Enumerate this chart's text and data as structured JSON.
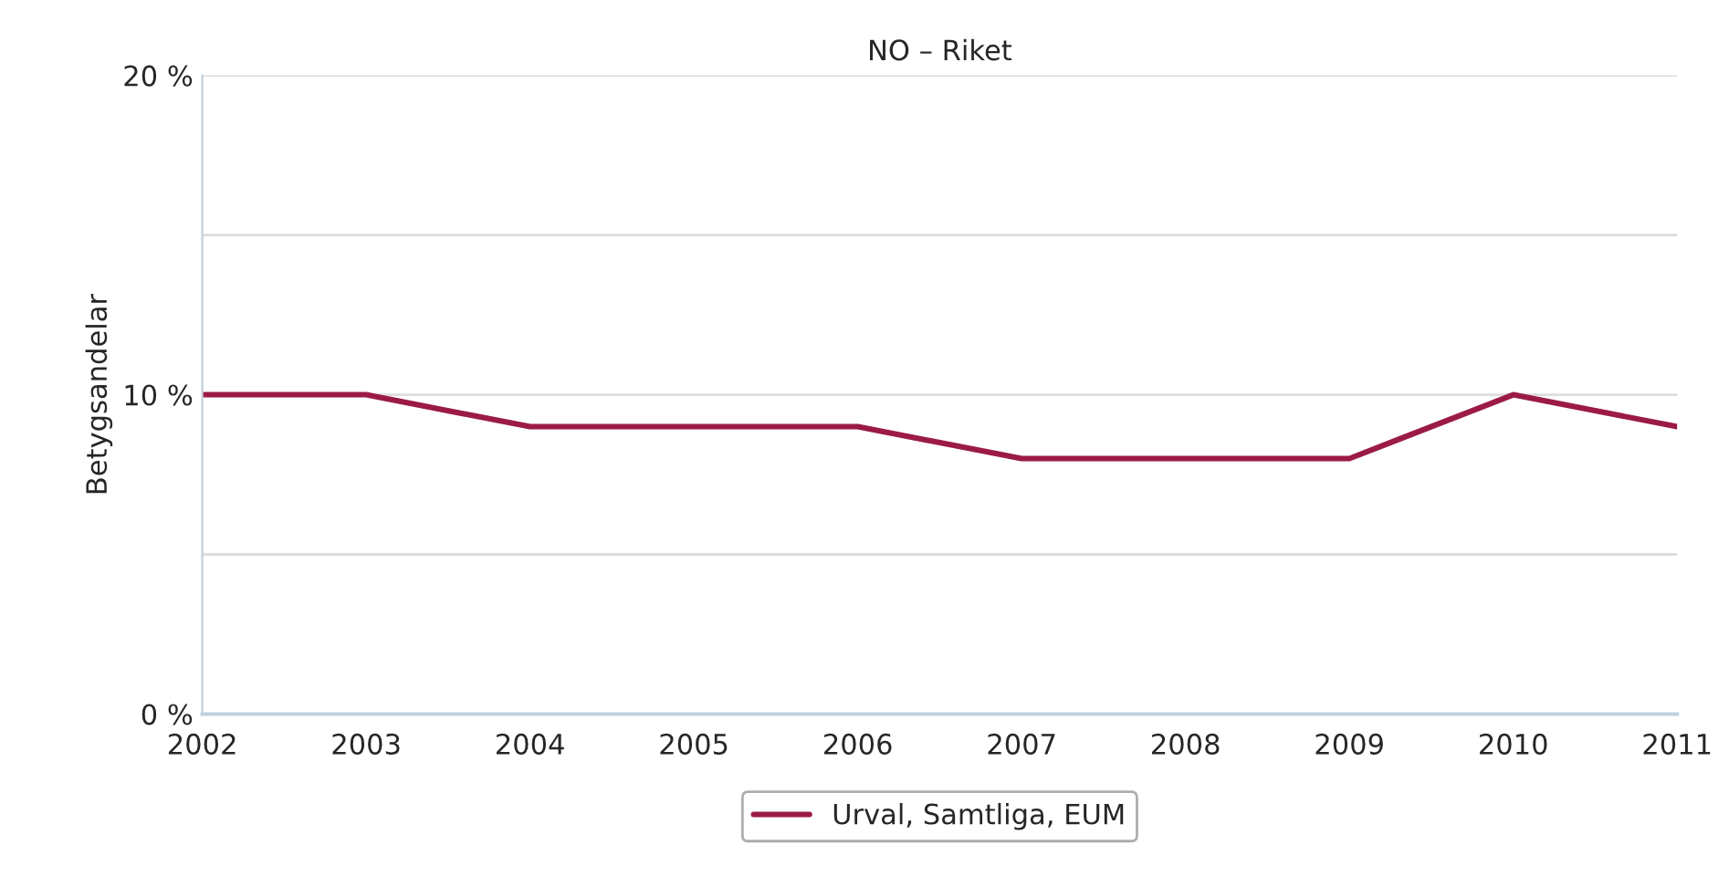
{
  "chart_data": {
    "type": "line",
    "title": "NO – Riket",
    "ylabel": "Betygsandelar",
    "x": [
      2002,
      2003,
      2004,
      2005,
      2006,
      2007,
      2008,
      2009,
      2010,
      2011
    ],
    "series": [
      {
        "name": "Urval, Samtliga, EUM",
        "color": "#9b1b45",
        "values": [
          10,
          10,
          9,
          9,
          9,
          8,
          8,
          8,
          10,
          9
        ]
      }
    ],
    "xlim": [
      2002,
      2011
    ],
    "xticks": [
      2002,
      2003,
      2004,
      2005,
      2006,
      2007,
      2008,
      2009,
      2010,
      2011
    ],
    "ylim": [
      0,
      20
    ],
    "yticks": [
      {
        "value": 0,
        "label": "0 %"
      },
      {
        "value": 5,
        "label": null
      },
      {
        "value": 10,
        "label": "10 %"
      },
      {
        "value": 15,
        "label": null
      },
      {
        "value": 20,
        "label": "20 %"
      }
    ],
    "grid": "y",
    "legend": "bottom",
    "marker": "none",
    "line_style": "solid"
  }
}
